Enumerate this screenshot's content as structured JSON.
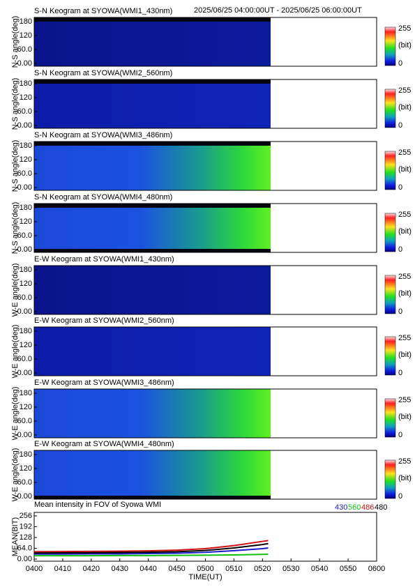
{
  "header": {
    "time_range": "2025/06/25 04:00:00UT - 2025/06/25 06:00:00UT"
  },
  "keograms": {
    "ylim": [
      0,
      180
    ],
    "yticks": [
      {
        "value": 0,
        "label": "0.00"
      },
      {
        "value": 60,
        "label": "60.0"
      },
      120,
      180
    ],
    "colorbar": {
      "max": 255,
      "min": 0,
      "unit": "(bit)"
    },
    "panels": [
      {
        "title": "S-N Keogram at SYOWA(WMI1_430nm)",
        "ylabel": "N-S angle(deg)"
      },
      {
        "title": "S-N Keogram at SYOWA(WMI2_560nm)",
        "ylabel": "N-S angle(deg)"
      },
      {
        "title": "S-N Keogram at SYOWA(WMI3_486nm)",
        "ylabel": "N-S angle(deg)"
      },
      {
        "title": "S-N Keogram at SYOWA(WMI4_480nm)",
        "ylabel": "N-S angle(deg)"
      },
      {
        "title": "E-W Keogram at SYOWA(WMI1_430nm)",
        "ylabel": "W-E angle(deg)"
      },
      {
        "title": "E-W Keogram at SYOWA(WMI2_560nm)",
        "ylabel": "W-E angle(deg)"
      },
      {
        "title": "E-W Keogram at SYOWA(WMI3_486nm)",
        "ylabel": "W-E angle(deg)"
      },
      {
        "title": "E-W Keogram at SYOWA(WMI4_480nm)",
        "ylabel": "W-E angle(deg)"
      }
    ]
  },
  "chart_data": {
    "type": "line",
    "title": "Mean intensity in FOV of Syowa WMI",
    "xlabel": "TIME(UT)",
    "ylabel": "MEAN(BIT)",
    "x": [
      240,
      250,
      260,
      270,
      280,
      290,
      300,
      310,
      320,
      322
    ],
    "xlim": [
      240,
      360
    ],
    "xticks": [
      {
        "value": 240,
        "label": "0400"
      },
      {
        "value": 250,
        "label": "0410"
      },
      {
        "value": 260,
        "label": "0420"
      },
      {
        "value": 270,
        "label": "0430"
      },
      {
        "value": 280,
        "label": "0440"
      },
      {
        "value": 290,
        "label": "0450"
      },
      {
        "value": 300,
        "label": "0500"
      },
      {
        "value": 310,
        "label": "0510"
      },
      {
        "value": 320,
        "label": "0520"
      },
      {
        "value": 330,
        "label": "0530"
      },
      {
        "value": 340,
        "label": "0540"
      },
      {
        "value": 350,
        "label": "0550"
      },
      {
        "value": 360,
        "label": "0600"
      }
    ],
    "ylim": [
      0,
      256
    ],
    "yticks": [
      {
        "value": 0,
        "label": "0.00"
      },
      {
        "value": 64,
        "label": "64.0"
      },
      128,
      192,
      256
    ],
    "series": [
      {
        "name": "430",
        "color": "#1a1acc",
        "values": [
          30,
          30,
          31,
          31,
          33,
          35,
          40,
          50,
          62,
          66
        ]
      },
      {
        "name": "560",
        "color": "#10c010",
        "values": [
          20,
          20,
          20,
          21,
          21,
          22,
          23,
          25,
          28,
          29
        ]
      },
      {
        "name": "486",
        "color": "#d01010",
        "values": [
          44,
          45,
          46,
          47,
          49,
          53,
          62,
          80,
          105,
          110
        ]
      },
      {
        "name": "480",
        "color": "#000000",
        "values": [
          36,
          37,
          38,
          39,
          41,
          44,
          51,
          66,
          86,
          92
        ]
      }
    ]
  }
}
